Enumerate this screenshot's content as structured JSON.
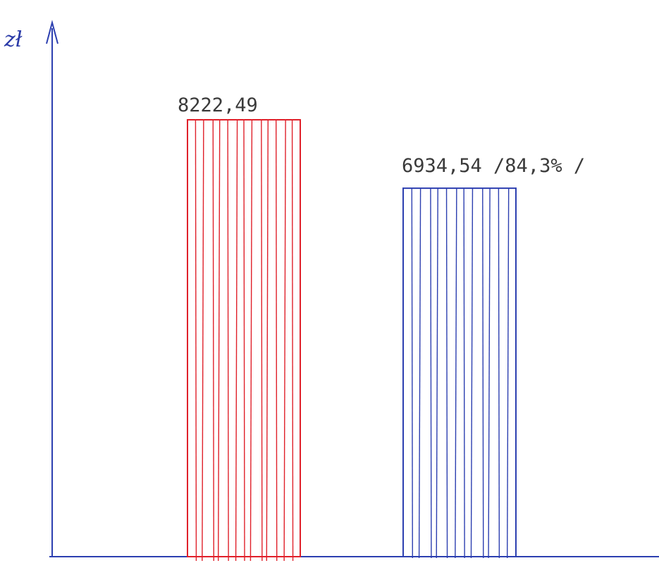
{
  "chart_data": {
    "type": "bar",
    "title": "",
    "ylabel": "zł",
    "xlabel": "",
    "categories": [
      "",
      ""
    ],
    "values": [
      8222.49,
      6934.54
    ],
    "data_labels": [
      "8222,49",
      "6934,54 /84,3% /"
    ],
    "bar_colors": [
      "#e0202a",
      "#2c3fb0"
    ],
    "axis_color": "#2c3fb0",
    "ylim": [
      0,
      10000
    ],
    "grid": false,
    "legend": "none"
  }
}
